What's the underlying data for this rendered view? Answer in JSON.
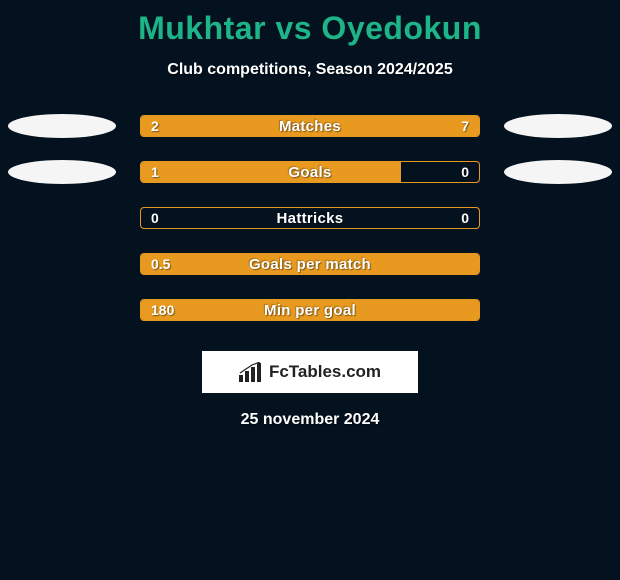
{
  "title_color": "#1db488",
  "accent_color": "#e79a1f",
  "background_color": "#041220",
  "ellipse_color": "#f5f5f5",
  "brand_bg": "#ffffff",
  "title": "Mukhtar vs Oyedokun",
  "subtitle": "Club competitions, Season 2024/2025",
  "brand": "FcTables.com",
  "date": "25 november 2024",
  "stats": [
    {
      "label": "Matches",
      "left_value": "2",
      "right_value": "7",
      "left_pct": 22,
      "right_pct": 78,
      "left_ellipse": true,
      "right_ellipse": true
    },
    {
      "label": "Goals",
      "left_value": "1",
      "right_value": "0",
      "left_pct": 77,
      "right_pct": 0,
      "left_ellipse": true,
      "right_ellipse": true
    },
    {
      "label": "Hattricks",
      "left_value": "0",
      "right_value": "0",
      "left_pct": 0,
      "right_pct": 0,
      "left_ellipse": false,
      "right_ellipse": false
    },
    {
      "label": "Goals per match",
      "left_value": "0.5",
      "right_value": "",
      "left_pct": 100,
      "right_pct": 0,
      "left_ellipse": false,
      "right_ellipse": false
    },
    {
      "label": "Min per goal",
      "left_value": "180",
      "right_value": "",
      "left_pct": 100,
      "right_pct": 0,
      "left_ellipse": false,
      "right_ellipse": false
    }
  ]
}
